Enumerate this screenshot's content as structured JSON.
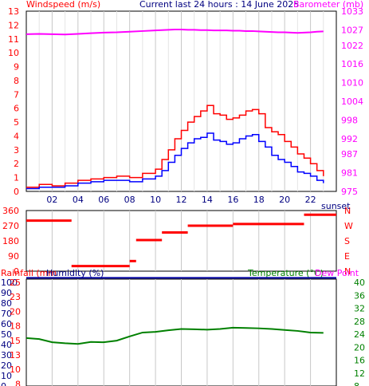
{
  "header": {
    "left_label": "Windspeed (m/s)",
    "center_title": "Current last 24 hours : 14 June 2025",
    "right_label": "Barometer (mb)"
  },
  "colors": {
    "wind": "#ff0000",
    "gust": "#0000ff",
    "baro": "#ff00ff",
    "direction": "#ff0000",
    "humidity": "#0000a0",
    "temperature": "#008000",
    "grid": "#c8c8c8"
  },
  "chart_data": [
    {
      "type": "line",
      "name": "wind-barometer",
      "x_ticks": [
        "02",
        "04",
        "06",
        "08",
        "10",
        "12",
        "14",
        "16",
        "18",
        "20",
        "22"
      ],
      "x_tick_hours": [
        2,
        4,
        6,
        8,
        10,
        12,
        14,
        16,
        18,
        20,
        22
      ],
      "y_left_ticks": [
        "0",
        "1",
        "1",
        "2",
        "3",
        "4",
        "5",
        "6",
        "7",
        "8",
        "9",
        "10",
        "11",
        "12",
        "13"
      ],
      "y_left_tick_values": [
        0,
        1,
        1.5,
        2,
        3,
        4,
        5,
        6,
        7,
        8,
        9,
        10,
        11,
        12,
        13
      ],
      "ylim_left": [
        0,
        13
      ],
      "y_right_ticks": [
        "975",
        "981",
        "987",
        "992",
        "998",
        "1004",
        "1010",
        "1016",
        "1022",
        "1027",
        "1033"
      ],
      "ylim_right": [
        975,
        1033
      ],
      "x_hours": [
        0,
        1,
        2,
        3,
        4,
        5,
        6,
        7,
        8,
        9,
        10,
        10.5,
        11,
        11.5,
        12,
        12.5,
        13,
        13.5,
        14,
        14.5,
        15,
        15.5,
        16,
        16.5,
        17,
        17.5,
        18,
        18.5,
        19,
        19.5,
        20,
        20.5,
        21,
        21.5,
        22,
        22.5,
        23
      ],
      "series": [
        {
          "key": "wind",
          "values": [
            0.3,
            0.5,
            0.4,
            0.6,
            0.8,
            0.9,
            1.0,
            1.1,
            1.0,
            1.3,
            1.6,
            2.3,
            3.0,
            3.8,
            4.4,
            5.0,
            5.4,
            5.8,
            6.2,
            5.6,
            5.5,
            5.2,
            5.3,
            5.5,
            5.8,
            5.9,
            5.6,
            4.6,
            4.3,
            4.1,
            3.6,
            3.2,
            2.7,
            2.4,
            2.0,
            1.5,
            1.1
          ]
        },
        {
          "key": "gust",
          "values": [
            0.2,
            0.3,
            0.3,
            0.4,
            0.6,
            0.7,
            0.8,
            0.8,
            0.7,
            0.9,
            1.1,
            1.5,
            2.1,
            2.6,
            3.1,
            3.5,
            3.8,
            3.9,
            4.2,
            3.7,
            3.6,
            3.4,
            3.5,
            3.8,
            4.0,
            4.1,
            3.6,
            3.2,
            2.6,
            2.3,
            2.1,
            1.8,
            1.4,
            1.3,
            1.1,
            0.8,
            0.6
          ]
        },
        {
          "key": "baro",
          "values": [
            1025.6,
            1025.7,
            1025.6,
            1025.5,
            1025.7,
            1025.9,
            1026.1,
            1026.2,
            1026.4,
            1026.6,
            1026.8,
            1026.9,
            1027.0,
            1027.1,
            1027.1,
            1027.0,
            1027.0,
            1026.9,
            1026.9,
            1026.8,
            1026.8,
            1026.8,
            1026.7,
            1026.7,
            1026.6,
            1026.6,
            1026.5,
            1026.4,
            1026.3,
            1026.2,
            1026.2,
            1026.1,
            1026.0,
            1026.1,
            1026.2,
            1026.4,
            1026.5
          ]
        }
      ]
    },
    {
      "type": "scatter",
      "name": "wind-direction",
      "y_left_ticks": [
        "360",
        "270",
        "180",
        "90",
        "0"
      ],
      "y_left_tick_values": [
        360,
        270,
        180,
        90,
        0
      ],
      "ylim": [
        0,
        360
      ],
      "right_labels": [
        "N",
        "W",
        "S",
        "E",
        "N"
      ],
      "corner_label": "sunset",
      "segments": [
        {
          "x_start": 0.0,
          "x_end": 3.5,
          "value": 300
        },
        {
          "x_start": 3.5,
          "x_end": 8.0,
          "value": 30
        },
        {
          "x_start": 8.0,
          "x_end": 8.5,
          "value": 60
        },
        {
          "x_start": 8.5,
          "x_end": 10.5,
          "value": 185
        },
        {
          "x_start": 10.5,
          "x_end": 12.5,
          "value": 230
        },
        {
          "x_start": 12.5,
          "x_end": 16.0,
          "value": 270
        },
        {
          "x_start": 16.0,
          "x_end": 21.5,
          "value": 280
        },
        {
          "x_start": 21.5,
          "x_end": 24.0,
          "value": 335
        }
      ]
    },
    {
      "type": "line",
      "name": "rain-humidity-temperature",
      "left_label": "Rainfall (mm",
      "left_label2": "Humidity (%)",
      "right_label": "Temperature (°C)",
      "right_label2": "Dew Point",
      "y_left_inner_ticks": [
        "25",
        "23",
        "20",
        "18",
        "15",
        "13",
        "10",
        "8"
      ],
      "y_left_outer_ticks": [
        "100",
        "90",
        "80",
        "70",
        "60",
        "50",
        "40",
        "30",
        "20",
        "10",
        "0"
      ],
      "ylim_left": [
        0,
        100
      ],
      "y_right_ticks": [
        "40",
        "36",
        "32",
        "28",
        "24",
        "20",
        "16",
        "12",
        "8"
      ],
      "ylim_right": [
        8,
        40
      ],
      "x_hours": [
        0,
        1,
        2,
        3,
        4,
        5,
        6,
        7,
        8,
        9,
        10,
        11,
        12,
        13,
        14,
        15,
        16,
        17,
        18,
        19,
        20,
        21,
        22,
        23
      ],
      "series": [
        {
          "key": "humidity",
          "values": [
            99,
            99,
            99,
            99,
            99,
            99,
            99,
            99,
            99,
            99,
            99,
            99,
            99,
            99,
            99,
            99,
            99,
            99,
            99,
            99,
            99,
            99,
            99,
            99
          ]
        },
        {
          "key": "temperature",
          "values": [
            22.8,
            22.5,
            21.5,
            21.2,
            21.0,
            21.6,
            21.5,
            22.0,
            23.3,
            24.5,
            24.7,
            25.2,
            25.6,
            25.5,
            25.4,
            25.6,
            26.0,
            25.9,
            25.8,
            25.6,
            25.3,
            25.0,
            24.5,
            24.4
          ]
        }
      ]
    }
  ]
}
